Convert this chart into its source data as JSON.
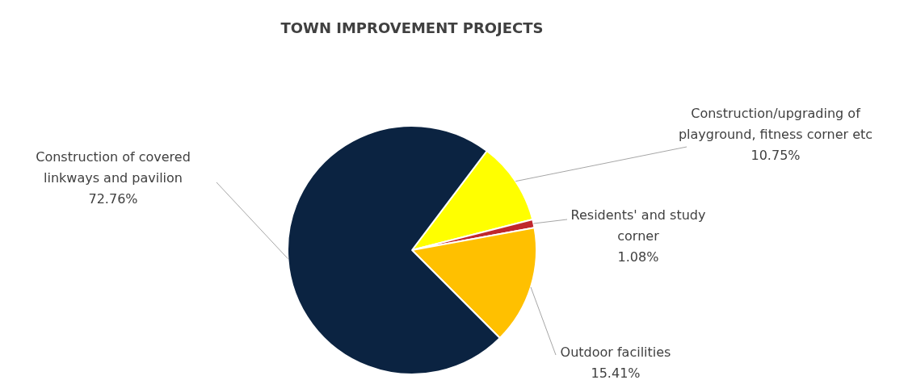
{
  "chart_data": {
    "type": "pie",
    "title": "TOWN IMPROVEMENT PROJECTS",
    "categories": [
      "Construction/upgrading of playground, fitness corner etc",
      "Residents' and study corner",
      "Outdoor facilities",
      "Construction of covered linkways and pavilion"
    ],
    "values": [
      10.75,
      1.08,
      15.41,
      72.76
    ],
    "value_labels": [
      "10.75%",
      "1.08%",
      "15.41%",
      "72.76%"
    ],
    "colors": [
      "#ffff00",
      "#c0272d",
      "#ffc000",
      "#0b2341"
    ],
    "legend": false
  }
}
